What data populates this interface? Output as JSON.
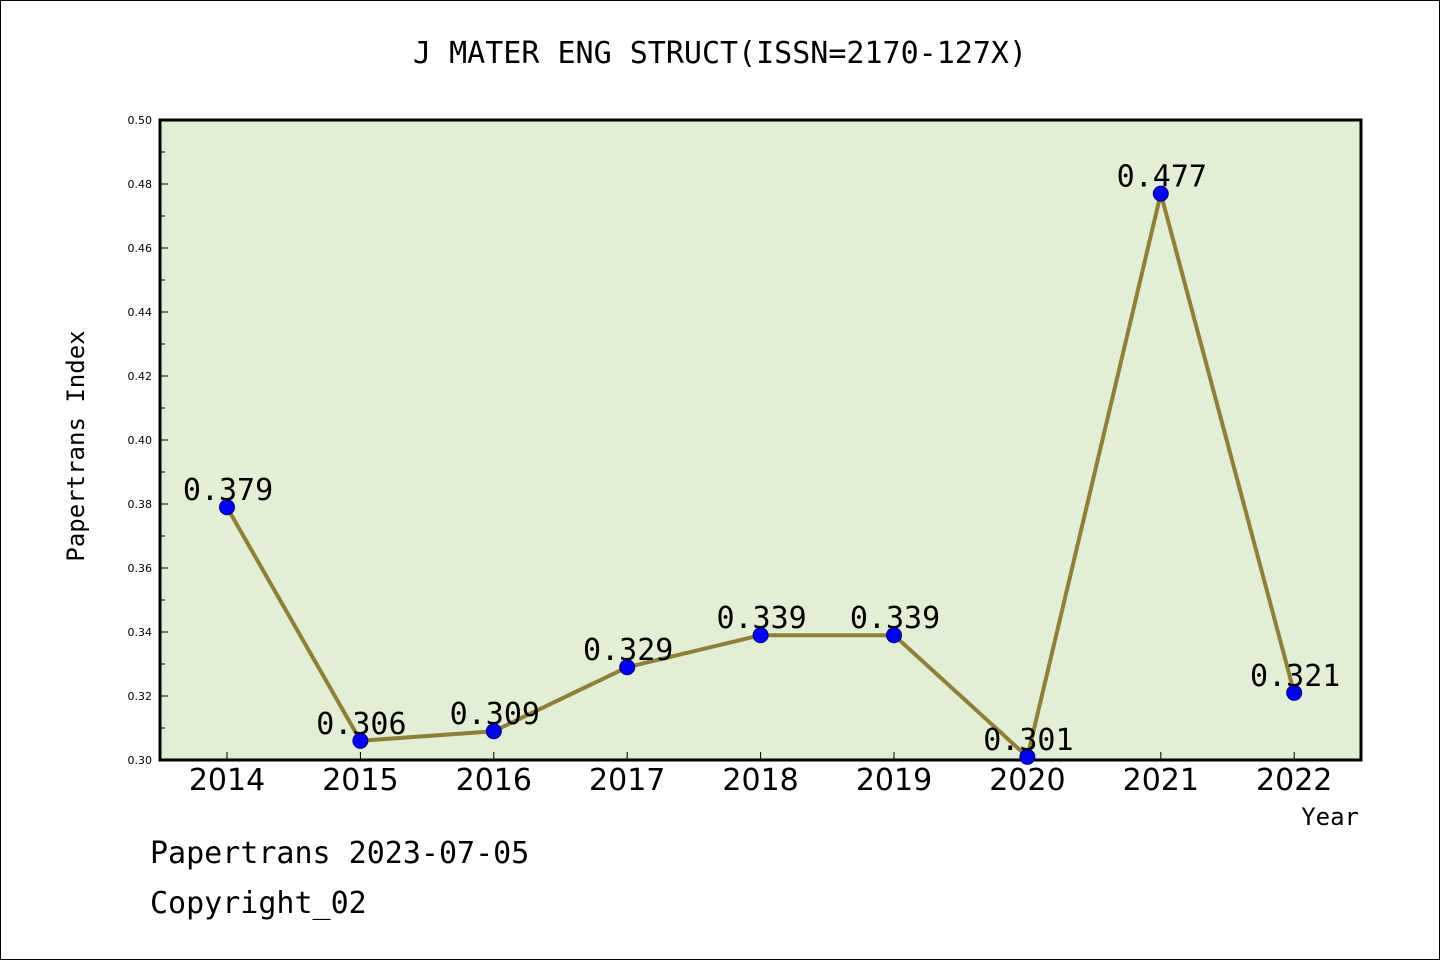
{
  "colors": {
    "plot_background": "#e2efd4",
    "line": "#8f8035",
    "marker": "#0000ff",
    "marker_edge": "#000080",
    "axis": "#000000"
  },
  "footer": {
    "line1": "Papertrans 2023-07-05",
    "line2": "Copyright_02"
  },
  "chart_data": {
    "type": "line",
    "title": "J MATER ENG STRUCT(ISSN=2170-127X)",
    "xlabel": "Year",
    "ylabel": "Papertrans Index",
    "categories": [
      "2014",
      "2015",
      "2016",
      "2017",
      "2018",
      "2019",
      "2020",
      "2021",
      "2022"
    ],
    "values": [
      0.379,
      0.306,
      0.309,
      0.329,
      0.339,
      0.339,
      0.301,
      0.477,
      0.321
    ],
    "data_labels": [
      "0.379",
      "0.306",
      "0.309",
      "0.329",
      "0.339",
      "0.339",
      "0.301",
      "0.477",
      "0.321"
    ],
    "ylim": [
      0.3,
      0.5
    ],
    "yticks": [
      "0.30",
      "0.32",
      "0.34",
      "0.36",
      "0.38",
      "0.40",
      "0.42",
      "0.44",
      "0.46",
      "0.48",
      "0.50"
    ],
    "grid": false,
    "legend": "none"
  }
}
